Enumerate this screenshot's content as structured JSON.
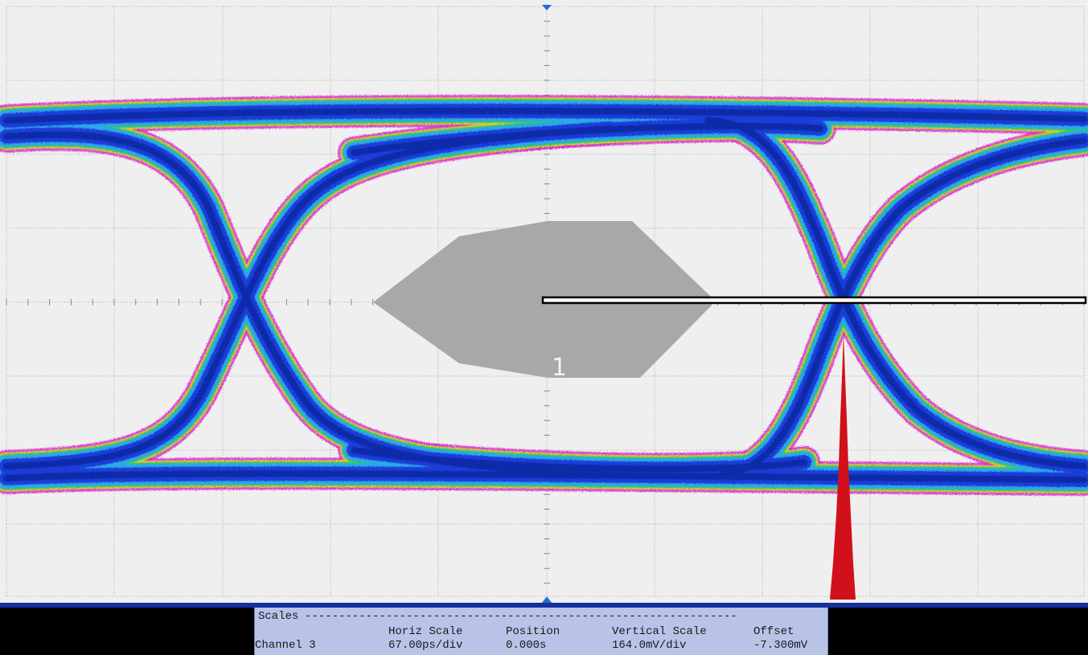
{
  "scope": {
    "mask_label": "1",
    "colors": {
      "background": "#efefef",
      "grid": "#a8a8a8",
      "trace_core": "#1a3cd8",
      "trace_mid": "#2aa8e8",
      "trace_edge": "#d52cd0",
      "mask": "#a8a8a8",
      "histogram": "#d0101a",
      "trigger_marker": "#1f6fd6",
      "bottom_bar": "#1230a0"
    }
  },
  "scales": {
    "title": "Scales",
    "dashes": "----------------------------------------------------------------",
    "col_horiz_scale": "Horiz Scale",
    "col_position": "Position",
    "col_vertical_scale": "Vertical Scale",
    "col_offset": "Offset",
    "row_channel": "Channel 3",
    "horiz_scale_value": "67.00ps/div",
    "position_value": "0.000s",
    "vertical_scale_value": "164.0mV/div",
    "offset_value": "-7.300mV"
  }
}
